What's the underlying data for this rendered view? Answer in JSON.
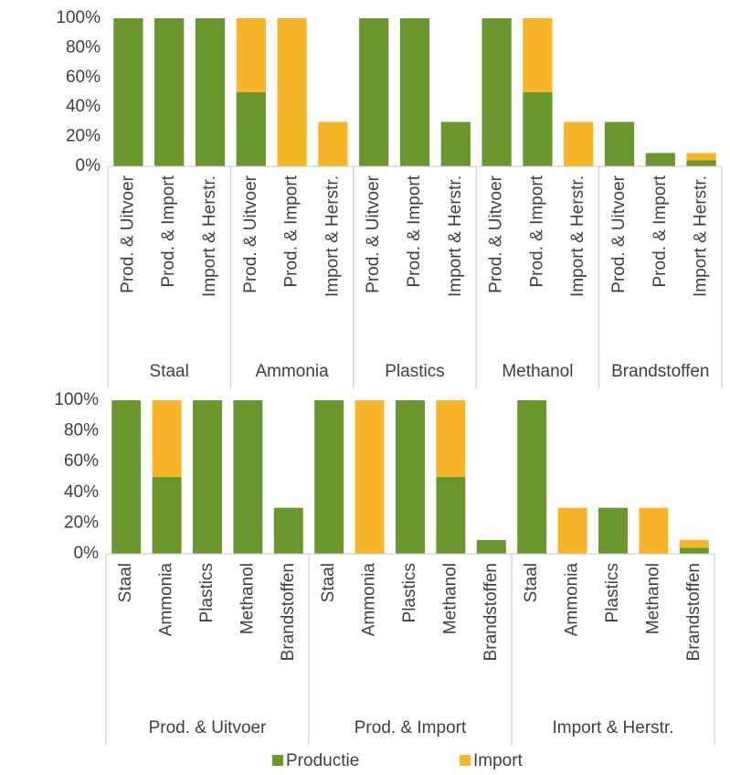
{
  "chart_data": {
    "type": "bar",
    "stacked": true,
    "ylim": [
      0,
      100
    ],
    "yticks": [
      {
        "value": 0,
        "label": "0%"
      },
      {
        "value": 20,
        "label": "20%"
      },
      {
        "value": 40,
        "label": "40%"
      },
      {
        "value": 60,
        "label": "60%"
      },
      {
        "value": 80,
        "label": "80%"
      },
      {
        "value": 100,
        "label": "100%"
      }
    ],
    "series": [
      {
        "name": "Productie",
        "color": "#6a962e"
      },
      {
        "name": "Import",
        "color": "#f7b52a"
      }
    ],
    "panels": [
      {
        "groups": [
          {
            "name": "Staal",
            "categories": [
              "Prod. & Uitvoer",
              "Prod. & Import",
              "Import & Herstr."
            ]
          },
          {
            "name": "Ammonia",
            "categories": [
              "Prod. & Uitvoer",
              "Prod. & Import",
              "Import & Herstr."
            ]
          },
          {
            "name": "Plastics",
            "categories": [
              "Prod. & Uitvoer",
              "Prod. & Import",
              "Import & Herstr."
            ]
          },
          {
            "name": "Methanol",
            "categories": [
              "Prod. & Uitvoer",
              "Prod. & Import",
              "Import & Herstr."
            ]
          },
          {
            "name": "Brandstoffen",
            "categories": [
              "Prod. & Uitvoer",
              "Prod. & Import",
              "Import & Herstr."
            ]
          }
        ],
        "values": [
          [
            100,
            100,
            100,
            50,
            0,
            0,
            100,
            100,
            30,
            100,
            50,
            0,
            30,
            9,
            4
          ],
          [
            0,
            0,
            0,
            50,
            100,
            30,
            0,
            0,
            0,
            0,
            50,
            30,
            0,
            0,
            5
          ]
        ]
      },
      {
        "groups": [
          {
            "name": "Prod. & Uitvoer",
            "categories": [
              "Staal",
              "Ammonia",
              "Plastics",
              "Methanol",
              "Brandstoffen"
            ]
          },
          {
            "name": "Prod. & Import",
            "categories": [
              "Staal",
              "Ammonia",
              "Plastics",
              "Methanol",
              "Brandstoffen"
            ]
          },
          {
            "name": "Import & Herstr.",
            "categories": [
              "Staal",
              "Ammonia",
              "Plastics",
              "Methanol",
              "Brandstoffen"
            ]
          }
        ],
        "values": [
          [
            100,
            50,
            100,
            100,
            30,
            100,
            0,
            100,
            50,
            9,
            100,
            0,
            30,
            0,
            4
          ],
          [
            0,
            50,
            0,
            0,
            0,
            0,
            100,
            0,
            50,
            0,
            0,
            30,
            0,
            30,
            5
          ]
        ]
      }
    ]
  }
}
